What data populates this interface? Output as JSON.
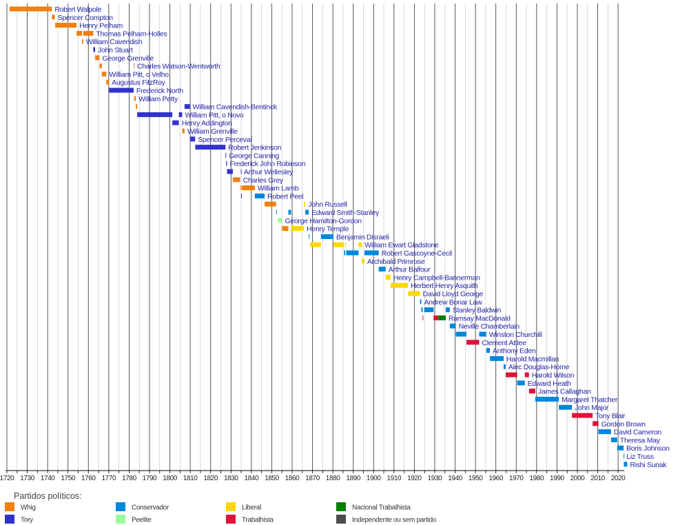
{
  "chart_data": {
    "type": "timeline",
    "title": "",
    "xlim": [
      1720,
      2024.5
    ],
    "xticks": [
      1720,
      1730,
      1740,
      1750,
      1760,
      1770,
      1780,
      1790,
      1800,
      1810,
      1820,
      1830,
      1840,
      1850,
      1860,
      1870,
      1880,
      1890,
      1900,
      1910,
      1920,
      1930,
      1940,
      1950,
      1960,
      1970,
      1980,
      1990,
      2000,
      2010,
      2020
    ],
    "grid": true,
    "legend": {
      "title": "Partidos políticos:",
      "placement": "bottom",
      "entries": [
        {
          "key": "whig",
          "label": "Whig",
          "color": "#f08010"
        },
        {
          "key": "tory",
          "label": "Tory",
          "color": "#3333cc"
        },
        {
          "key": "cons",
          "label": "Conservador",
          "color": "#0087dc"
        },
        {
          "key": "peelite",
          "label": "Peelite",
          "color": "#99ff99"
        },
        {
          "key": "lib",
          "label": "Liberal",
          "color": "#ffd700"
        },
        {
          "key": "lab",
          "label": "Trabalhista",
          "color": "#dc143c"
        },
        {
          "key": "natlab",
          "label": "Nacional Trabalhista",
          "color": "#007f00"
        },
        {
          "key": "ind",
          "label": "Independente ou sem partido",
          "color": "#4c4c4c"
        }
      ]
    },
    "series": [
      {
        "name": "Robert Walpole",
        "terms": [
          [
            1721.3,
            1742.1,
            "whig"
          ]
        ]
      },
      {
        "name": "Spencer Compton",
        "terms": [
          [
            1742.1,
            1743.5,
            "whig"
          ]
        ]
      },
      {
        "name": "Henry Pelham",
        "terms": [
          [
            1743.7,
            1754.2,
            "whig"
          ]
        ]
      },
      {
        "name": "Thomas Pelham-Holles",
        "terms": [
          [
            1754.2,
            1756.9,
            "whig"
          ],
          [
            1757.5,
            1762.4,
            "whig"
          ]
        ]
      },
      {
        "name": "William Cavendish",
        "terms": [
          [
            1756.9,
            1757.5,
            "whig"
          ]
        ]
      },
      {
        "name": "John Stuart",
        "terms": [
          [
            1762.4,
            1763.3,
            "tory"
          ]
        ]
      },
      {
        "name": "George Grenville",
        "terms": [
          [
            1763.3,
            1765.5,
            "whig"
          ]
        ]
      },
      {
        "name": "Charles Watson-Wentworth",
        "terms": [
          [
            1765.5,
            1766.6,
            "whig"
          ],
          [
            1782.25,
            1782.5,
            "whig"
          ]
        ]
      },
      {
        "name": "William Pitt, o Velho",
        "terms": [
          [
            1766.6,
            1768.8,
            "whig"
          ]
        ]
      },
      {
        "name": "Augustus FitzRoy",
        "terms": [
          [
            1768.8,
            1770.1,
            "whig"
          ]
        ]
      },
      {
        "name": "Frederick North",
        "terms": [
          [
            1770.1,
            1782.2,
            "tory"
          ]
        ]
      },
      {
        "name": "William Petty",
        "terms": [
          [
            1782.5,
            1783.3,
            "whig"
          ]
        ]
      },
      {
        "name": "William Cavendish-Bentinck",
        "terms": [
          [
            1783.3,
            1783.95,
            "whig"
          ],
          [
            1807.2,
            1809.8,
            "tory"
          ]
        ]
      },
      {
        "name": "William Pitt, o Novo",
        "terms": [
          [
            1783.95,
            1801.2,
            "tory"
          ],
          [
            1804.4,
            1806.05,
            "tory"
          ]
        ]
      },
      {
        "name": "Henry Addington",
        "terms": [
          [
            1801.2,
            1804.4,
            "tory"
          ]
        ]
      },
      {
        "name": "William Grenville",
        "terms": [
          [
            1806.1,
            1807.2,
            "whig"
          ]
        ]
      },
      {
        "name": "Spencer Perceval",
        "terms": [
          [
            1809.8,
            1812.4,
            "tory"
          ]
        ]
      },
      {
        "name": "Robert Jenkinson",
        "terms": [
          [
            1812.45,
            1827.3,
            "tory"
          ]
        ]
      },
      {
        "name": "George Canning",
        "terms": [
          [
            1827.3,
            1827.6,
            "tory"
          ]
        ]
      },
      {
        "name": "Frederick John Robinson",
        "terms": [
          [
            1827.6,
            1828.05,
            "tory"
          ]
        ]
      },
      {
        "name": "Arthur Wellesley",
        "terms": [
          [
            1828.05,
            1830.9,
            "tory"
          ],
          [
            1834.85,
            1834.95,
            "tory"
          ]
        ]
      },
      {
        "name": "Charles Grey",
        "terms": [
          [
            1830.9,
            1834.5,
            "whig"
          ]
        ]
      },
      {
        "name": "William Lamb",
        "terms": [
          [
            1834.5,
            1834.85,
            "whig"
          ],
          [
            1835.3,
            1841.7,
            "whig"
          ]
        ]
      },
      {
        "name": "Robert Peel",
        "terms": [
          [
            1834.95,
            1835.3,
            "tory"
          ],
          [
            1841.7,
            1846.5,
            "cons"
          ]
        ]
      },
      {
        "name": "John Russell",
        "terms": [
          [
            1846.5,
            1852.1,
            "whig"
          ],
          [
            1865.8,
            1866.5,
            "lib"
          ]
        ]
      },
      {
        "name": "Edward Smith-Stanley",
        "terms": [
          [
            1852.15,
            1852.3,
            "cons"
          ],
          [
            1858.15,
            1859.45,
            "cons"
          ],
          [
            1866.5,
            1868.15,
            "cons"
          ]
        ]
      },
      {
        "name": "George Hamilton-Gordon",
        "terms": [
          [
            1852.95,
            1855.1,
            "peelite"
          ]
        ]
      },
      {
        "name": "Henry Temple",
        "terms": [
          [
            1855.1,
            1858.15,
            "whig"
          ],
          [
            1859.45,
            1865.8,
            "lib"
          ]
        ]
      },
      {
        "name": "Benjamin Disraeli",
        "terms": [
          [
            1868.15,
            1868.35,
            "cons"
          ],
          [
            1874.15,
            1880.3,
            "cons"
          ]
        ]
      },
      {
        "name": "William Ewart Gladstone",
        "terms": [
          [
            1868.9,
            1874.15,
            "lib"
          ],
          [
            1880.3,
            1885.45,
            "lib"
          ],
          [
            1886.1,
            1886.3,
            "lib"
          ],
          [
            1892.6,
            1894.2,
            "lib"
          ]
        ]
      },
      {
        "name": "Robert Gascoyne-Cecil",
        "terms": [
          [
            1885.45,
            1886.1,
            "cons"
          ],
          [
            1886.55,
            1892.6,
            "cons"
          ],
          [
            1895.5,
            1902.5,
            "cons"
          ]
        ]
      },
      {
        "name": "Archibald Primrose",
        "terms": [
          [
            1894.2,
            1895.5,
            "lib"
          ]
        ]
      },
      {
        "name": "Arthur Balfour",
        "terms": [
          [
            1902.5,
            1905.9,
            "cons"
          ]
        ]
      },
      {
        "name": "Henry Campbell-Bannerman",
        "terms": [
          [
            1905.9,
            1908.3,
            "lib"
          ]
        ]
      },
      {
        "name": "Herbert Henry Asquith",
        "terms": [
          [
            1908.3,
            1916.9,
            "lib"
          ]
        ]
      },
      {
        "name": "David Lloyd George",
        "terms": [
          [
            1916.9,
            1922.8,
            "lib"
          ]
        ]
      },
      {
        "name": "Andrew Bonar Law",
        "terms": [
          [
            1922.8,
            1923.4,
            "cons"
          ]
        ]
      },
      {
        "name": "Stanley Baldwin",
        "terms": [
          [
            1923.4,
            1924.05,
            "cons"
          ],
          [
            1924.85,
            1929.4,
            "cons"
          ],
          [
            1935.4,
            1937.4,
            "cons"
          ]
        ]
      },
      {
        "name": "Ramsay MacDonald",
        "terms": [
          [
            1924.05,
            1924.3,
            "lab"
          ],
          [
            1929.4,
            1931.65,
            "lab"
          ],
          [
            1931.65,
            1935.4,
            "natlab"
          ]
        ]
      },
      {
        "name": "Neville Chamberlain",
        "terms": [
          [
            1937.4,
            1940.35,
            "cons"
          ]
        ]
      },
      {
        "name": "Winston Churchill",
        "terms": [
          [
            1940.35,
            1945.55,
            "cons"
          ],
          [
            1951.8,
            1955.3,
            "cons"
          ]
        ]
      },
      {
        "name": "Clement Attlee",
        "terms": [
          [
            1945.55,
            1951.8,
            "lab"
          ]
        ]
      },
      {
        "name": "Anthony Eden",
        "terms": [
          [
            1955.3,
            1957.05,
            "cons"
          ]
        ]
      },
      {
        "name": "Harold Macmillan",
        "terms": [
          [
            1957.05,
            1963.8,
            "cons"
          ]
        ]
      },
      {
        "name": "Alec Douglas-Home",
        "terms": [
          [
            1963.8,
            1964.8,
            "cons"
          ]
        ]
      },
      {
        "name": "Harold Wilson",
        "terms": [
          [
            1964.8,
            1970.45,
            "lab"
          ],
          [
            1974.2,
            1976.25,
            "lab"
          ]
        ]
      },
      {
        "name": "Edward Heath",
        "terms": [
          [
            1970.45,
            1974.2,
            "cons"
          ]
        ]
      },
      {
        "name": "James Callaghan",
        "terms": [
          [
            1976.25,
            1979.35,
            "lab"
          ]
        ]
      },
      {
        "name": "Margaret Thatcher",
        "terms": [
          [
            1979.35,
            1990.9,
            "cons"
          ]
        ]
      },
      {
        "name": "John Major",
        "terms": [
          [
            1990.9,
            1997.35,
            "cons"
          ]
        ]
      },
      {
        "name": "Tony Blair",
        "terms": [
          [
            1997.35,
            2007.5,
            "lab"
          ]
        ]
      },
      {
        "name": "Gordon Brown",
        "terms": [
          [
            2007.5,
            2010.35,
            "lab"
          ]
        ]
      },
      {
        "name": "David Cameron",
        "terms": [
          [
            2010.35,
            2016.55,
            "cons"
          ]
        ]
      },
      {
        "name": "Theresa May",
        "terms": [
          [
            2016.55,
            2019.55,
            "cons"
          ]
        ]
      },
      {
        "name": "Boris Johnson",
        "terms": [
          [
            2019.55,
            2022.7,
            "cons"
          ]
        ]
      },
      {
        "name": "Liz Truss",
        "terms": [
          [
            2022.7,
            2022.8,
            "cons"
          ]
        ]
      },
      {
        "name": "Rishi Sunak",
        "terms": [
          [
            2022.8,
            2024.5,
            "cons"
          ]
        ]
      }
    ]
  }
}
